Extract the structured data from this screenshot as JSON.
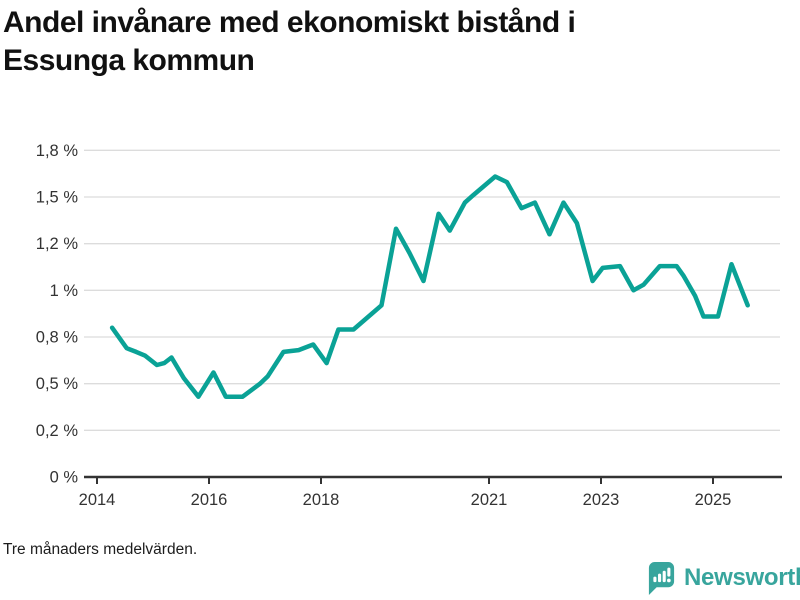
{
  "title": {
    "line1": "Andel invånare med ekonomiskt bistånd i",
    "line2": "Essunga kommun"
  },
  "footnote": "Tre månaders medelvärden.",
  "logo": {
    "text": "Newsworthy",
    "color": "#38a59d",
    "icon": "bar-chart-speech-bubble-icon"
  },
  "colors": {
    "line": "#0aa296",
    "grid": "#dcdcdc",
    "axis": "#333333",
    "tick_label": "#333333"
  },
  "chart_data": {
    "type": "line",
    "title": "Andel invånare med ekonomiskt bistånd i Essunga kommun",
    "xlabel": "",
    "ylabel": "",
    "grid": "horizontal",
    "legend": "none",
    "xlim": [
      2013.77,
      2026.23
    ],
    "ylim": [
      0,
      1.875
    ],
    "x_ticks": [
      {
        "value": 2014,
        "label": "2014"
      },
      {
        "value": 2016,
        "label": "2016"
      },
      {
        "value": 2018,
        "label": "2018"
      },
      {
        "value": 2021,
        "label": "2021"
      },
      {
        "value": 2023,
        "label": "2023"
      },
      {
        "value": 2025,
        "label": "2025"
      }
    ],
    "y_ticks": [
      {
        "value": 0,
        "label": "0 %"
      },
      {
        "value": 0.25,
        "label": "0,2 %"
      },
      {
        "value": 0.5,
        "label": "0,5 %"
      },
      {
        "value": 0.75,
        "label": "0,8 %"
      },
      {
        "value": 1.0,
        "label": "1 %"
      },
      {
        "value": 1.25,
        "label": "1,2 %"
      },
      {
        "value": 1.5,
        "label": "1,5 %"
      },
      {
        "value": 1.75,
        "label": "1,8 %"
      }
    ],
    "series": [
      {
        "name": "Andel invånare med ekonomiskt bistånd (%)",
        "color": "#0aa296",
        "points": [
          [
            2014.27,
            0.8
          ],
          [
            2014.53,
            0.69
          ],
          [
            2014.7,
            0.67
          ],
          [
            2014.86,
            0.65
          ],
          [
            2015.07,
            0.6
          ],
          [
            2015.2,
            0.61
          ],
          [
            2015.33,
            0.64
          ],
          [
            2015.55,
            0.53
          ],
          [
            2015.81,
            0.43
          ],
          [
            2016.08,
            0.56
          ],
          [
            2016.3,
            0.43
          ],
          [
            2016.6,
            0.43
          ],
          [
            2016.91,
            0.5
          ],
          [
            2017.05,
            0.54
          ],
          [
            2017.33,
            0.67
          ],
          [
            2017.6,
            0.68
          ],
          [
            2017.86,
            0.71
          ],
          [
            2018.1,
            0.61
          ],
          [
            2018.31,
            0.79
          ],
          [
            2018.58,
            0.79
          ],
          [
            2019.08,
            0.92
          ],
          [
            2019.34,
            1.33
          ],
          [
            2019.58,
            1.2
          ],
          [
            2019.83,
            1.05
          ],
          [
            2020.1,
            1.41
          ],
          [
            2020.3,
            1.32
          ],
          [
            2020.57,
            1.47
          ],
          [
            2020.72,
            1.51
          ],
          [
            2021.11,
            1.61
          ],
          [
            2021.32,
            1.58
          ],
          [
            2021.58,
            1.44
          ],
          [
            2021.82,
            1.47
          ],
          [
            2022.08,
            1.3
          ],
          [
            2022.33,
            1.47
          ],
          [
            2022.57,
            1.36
          ],
          [
            2022.85,
            1.05
          ],
          [
            2023.03,
            1.12
          ],
          [
            2023.34,
            1.13
          ],
          [
            2023.58,
            1.0
          ],
          [
            2023.76,
            1.03
          ],
          [
            2024.05,
            1.13
          ],
          [
            2024.35,
            1.13
          ],
          [
            2024.47,
            1.08
          ],
          [
            2024.68,
            0.97
          ],
          [
            2024.83,
            0.86
          ],
          [
            2025.09,
            0.86
          ],
          [
            2025.33,
            1.14
          ],
          [
            2025.62,
            0.92
          ]
        ]
      }
    ]
  }
}
